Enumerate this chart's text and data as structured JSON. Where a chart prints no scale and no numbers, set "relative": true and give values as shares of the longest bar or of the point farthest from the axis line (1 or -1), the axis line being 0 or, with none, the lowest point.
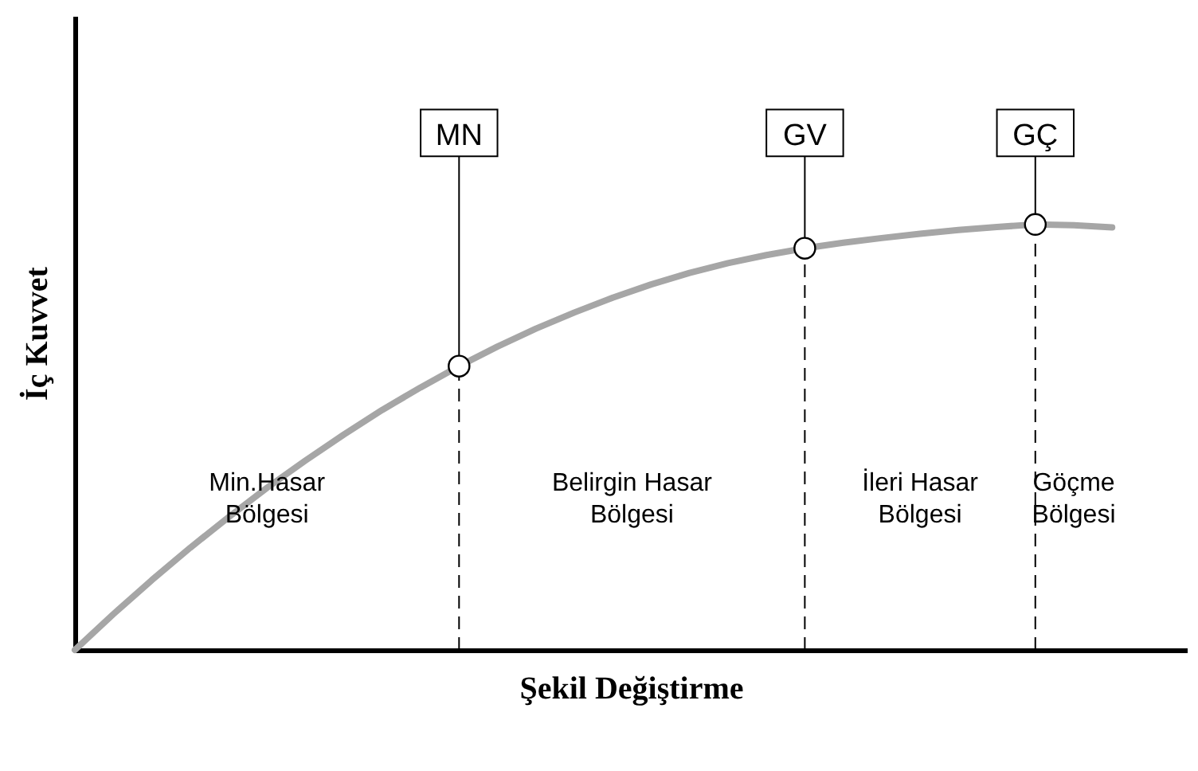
{
  "chart_data": {
    "type": "line",
    "relative": true,
    "xlabel": "Şekil Değiştirme",
    "ylabel": "İç Kuvvet",
    "grid": false,
    "tick_labels": false,
    "categories": [
      null,
      null,
      null,
      null,
      null,
      null,
      null,
      null,
      null,
      null,
      null,
      null,
      null,
      null,
      null,
      null,
      null,
      null,
      null,
      null,
      null,
      null,
      null,
      null,
      null,
      null,
      null,
      null
    ],
    "series": [
      {
        "color": "#a6a6a6",
        "values": [
          0,
          0.084,
          0.164,
          0.24,
          0.312,
          0.381,
          0.445,
          0.506,
          0.564,
          0.617,
          0.667,
          0.713,
          0.755,
          0.793,
          0.828,
          0.859,
          0.886,
          0.909,
          0.928,
          0.944,
          0.957,
          0.968,
          0.978,
          0.987,
          0.994,
          1,
          0.998,
          0.993
        ]
      }
    ],
    "annotations": [
      {
        "text": "MN",
        "y": 0.667
      },
      {
        "text": "GV",
        "y": 0.944
      },
      {
        "text": "GÇ",
        "y": 1
      },
      "Min.Hasar\nBölgesi",
      "Belirgin Hasar\nBölgesi",
      "İleri Hasar\nBölgesi",
      "Göçme\nBölgesi"
    ]
  }
}
